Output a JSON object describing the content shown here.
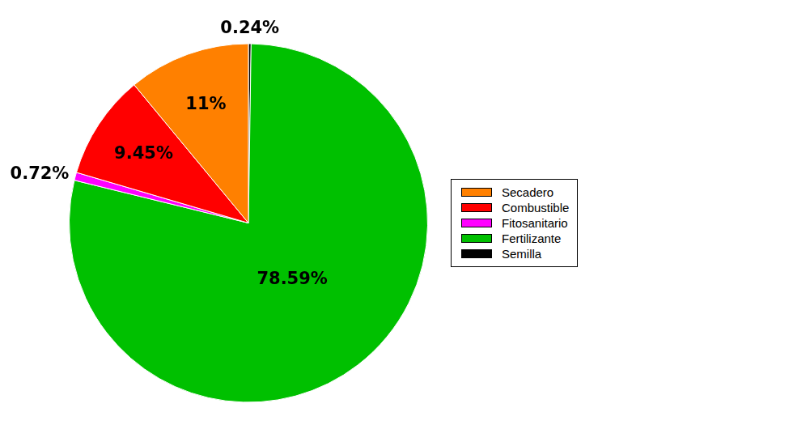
{
  "chart_data": {
    "type": "pie",
    "categories": [
      "Secadero",
      "Combustible",
      "Fitosanitario",
      "Fertilizante",
      "Semilla"
    ],
    "values": [
      11,
      9.45,
      0.72,
      78.59,
      0.24
    ],
    "value_labels": [
      "11%",
      "9.45%",
      "0.72%",
      "78.59%",
      "0.24%"
    ],
    "colors": [
      "#ff8000",
      "#ff0000",
      "#ff00ff",
      "#00c000",
      "#000000"
    ],
    "data_labels": true,
    "legend": "right"
  }
}
